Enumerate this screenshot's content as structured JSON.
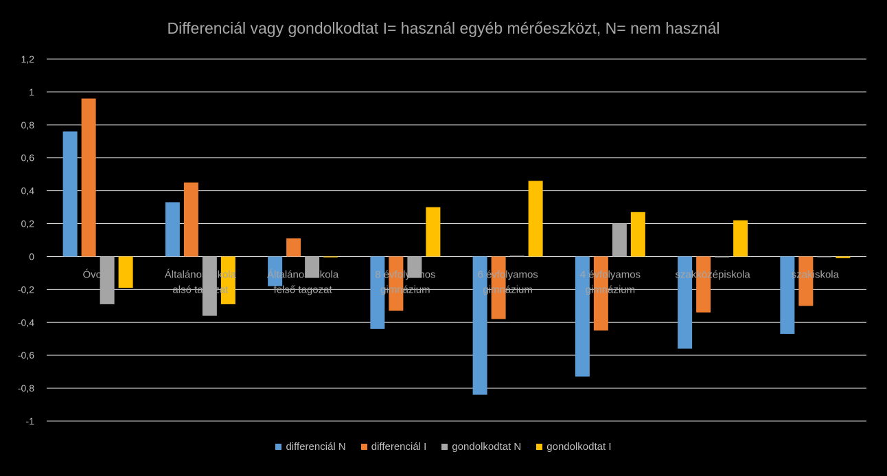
{
  "chart_data": {
    "type": "bar",
    "title": "Differenciál vagy gondolkodtat I= használ egyéb mérőeszközt, N= nem használ",
    "xlabel": "",
    "ylabel": "",
    "ylim": [
      -1,
      1.2
    ],
    "yticks": [
      1.2,
      1,
      0.8,
      0.6,
      0.4,
      0.2,
      0,
      -0.2,
      -0.4,
      -0.6,
      -0.8,
      -1
    ],
    "ytick_labels": [
      "1,2",
      "1",
      "0,8",
      "0,6",
      "0,4",
      "0,2",
      "0",
      "-0,2",
      "-0,4",
      "-0,6",
      "-0,8",
      "-1"
    ],
    "grid": true,
    "legend_position": "bottom",
    "categories": [
      [
        "Óvoda"
      ],
      [
        "Általános iskola",
        "alsó tagozat"
      ],
      [
        "Általános iskola",
        "felső tagozat"
      ],
      [
        "8 évfolyamos",
        "gimnázium"
      ],
      [
        "6 évfolyamos",
        "gimnázium"
      ],
      [
        "4 évfolyamos",
        "gimnázium"
      ],
      [
        "szakközépiskola"
      ],
      [
        "szakiskola"
      ]
    ],
    "series": [
      {
        "name": "differenciál N",
        "color": "#5B9BD5",
        "values": [
          0.76,
          0.33,
          -0.18,
          -0.44,
          -0.84,
          -0.73,
          -0.56,
          -0.47
        ]
      },
      {
        "name": "differenciál I",
        "color": "#ED7D31",
        "values": [
          0.96,
          0.45,
          0.11,
          -0.33,
          -0.38,
          -0.45,
          -0.34,
          -0.3
        ]
      },
      {
        "name": "gondolkodtat N",
        "color": "#A5A5A5",
        "values": [
          -0.29,
          -0.36,
          -0.13,
          -0.13,
          0.005,
          0.2,
          -0.005,
          0.0
        ]
      },
      {
        "name": "gondolkodtat I",
        "color": "#FFC000",
        "values": [
          -0.19,
          -0.29,
          -0.005,
          0.3,
          0.46,
          0.27,
          0.22,
          -0.01
        ]
      }
    ]
  }
}
